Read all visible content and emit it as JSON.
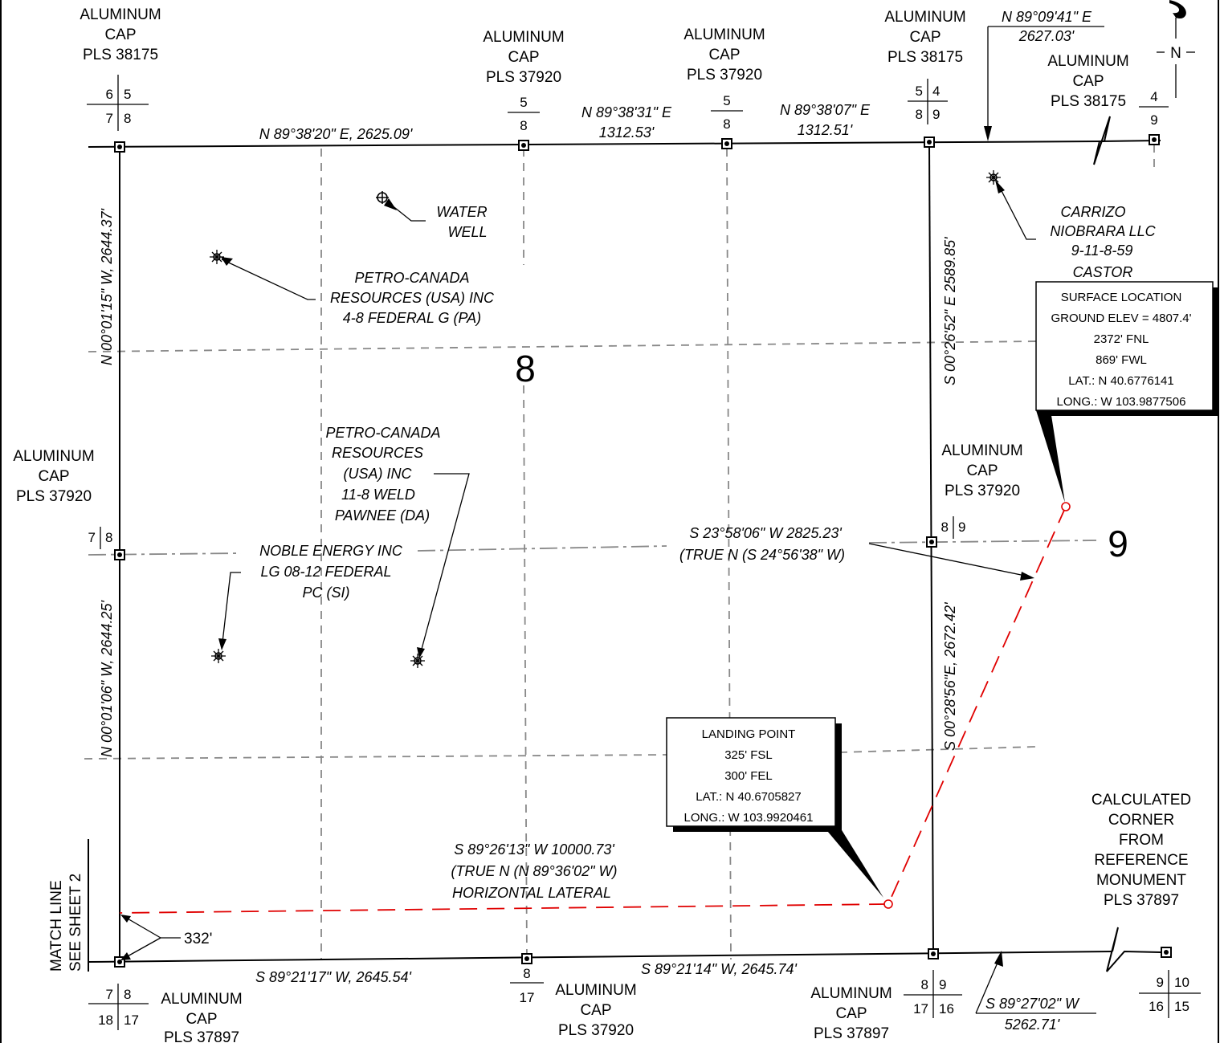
{
  "monuments": {
    "nw_cap": [
      "ALUMINUM",
      "CAP",
      "PLS 38175"
    ],
    "n_quarter_cap": [
      "ALUMINUM",
      "CAP",
      "PLS 37920"
    ],
    "n_mid_cap": [
      "ALUMINUM",
      "CAP",
      "PLS 37920"
    ],
    "ne_cap": [
      "ALUMINUM",
      "CAP",
      "PLS 38175"
    ],
    "far_ne_cap": [
      "ALUMINUM",
      "CAP",
      "PLS 38175"
    ],
    "w_quarter_cap": [
      "ALUMINUM",
      "CAP",
      "PLS 37920"
    ],
    "e_quarter_cap": [
      "ALUMINUM",
      "CAP",
      "PLS 37920"
    ],
    "sw_cap": [
      "ALUMINUM",
      "CAP",
      "PLS 37897"
    ],
    "s_quarter_cap": [
      "ALUMINUM",
      "CAP",
      "PLS 37920"
    ],
    "se_cap": [
      "ALUMINUM",
      "CAP",
      "PLS 37897"
    ],
    "calculated_corner": [
      "CALCULATED",
      "CORNER",
      "FROM",
      "REFERENCE",
      "MONUMENT",
      "PLS 37897"
    ]
  },
  "section_corners": {
    "nw": [
      "6",
      "5",
      "7",
      "8"
    ],
    "n_quarter": [
      "5",
      "8"
    ],
    "n_mid": [
      "5",
      "8"
    ],
    "ne": [
      "5",
      "4",
      "8",
      "9"
    ],
    "far_ne": [
      "4",
      "9"
    ],
    "w": [
      "7",
      "8"
    ],
    "e": [
      "8",
      "9"
    ],
    "sw": [
      "7",
      "8",
      "18",
      "17"
    ],
    "s_quarter": [
      "8",
      "17"
    ],
    "se": [
      "8",
      "9",
      "17",
      "16"
    ],
    "far_se": [
      "9",
      "10",
      "16",
      "15"
    ]
  },
  "bearings": {
    "north_line": "N 89°38'20\" E,  2625.09'",
    "north_mid_1": [
      "N 89°38'31\" E",
      "1312.53'"
    ],
    "north_mid_2": [
      "N 89°38'07\" E",
      "1312.51'"
    ],
    "north_east": [
      "N 89°09'41\" E",
      "2627.03'"
    ],
    "west_upper": "N 00°01'15\" W,  2644.37'",
    "west_lower": "N 00°01'06\" W,  2644.25'",
    "east_upper": "S 00°26'52\" E  2589.85'",
    "east_lower": "S 00°28'56\"E,  2672.42'",
    "south_line_1": "S 89°21'17\" W,  2645.54'",
    "south_line_2": "S 89°21'14\" W,  2645.74'",
    "south_east": [
      "S 89°27'02\" W",
      "5262.71'"
    ]
  },
  "wells": {
    "water_well": [
      "WATER",
      "WELL"
    ],
    "petro_canada_1": [
      "PETRO-CANADA",
      "RESOURCES (USA) INC",
      "4-8 FEDERAL G  (PA)"
    ],
    "petro_canada_2": [
      "PETRO-CANADA",
      "RESOURCES",
      "(USA) INC",
      "11-8 WELD",
      "PAWNEE  (DA)"
    ],
    "noble": [
      "NOBLE ENERGY INC",
      "LG 08-12 FEDERAL",
      "PC (SI)"
    ],
    "carrizo": [
      "CARRIZO",
      "NIOBRARA LLC",
      "9-11-8-59",
      "CASTOR"
    ]
  },
  "surface_location": [
    "SURFACE LOCATION",
    "GROUND ELEV = 4807.4'",
    "2372' FNL",
    "869' FWL",
    "LAT.: N 40.6776141",
    "LONG.: W 103.9877506"
  ],
  "landing_point": [
    "LANDING POINT",
    "325' FSL",
    "300' FEL",
    "LAT.: N 40.6705827",
    "LONG.: W 103.9920461"
  ],
  "lateral": {
    "diagonal": [
      "S 23°58'06\" W  2825.23'",
      "(TRUE N (S 24°56'38\" W)"
    ],
    "horizontal": [
      "S 89°26'13\" W  10000.73'",
      "(TRUE N (N 89°36'02\" W)",
      "HORIZONTAL LATERAL"
    ]
  },
  "section_numbers": {
    "s8": "8",
    "s9": "9"
  },
  "offset": "332'",
  "match_line": [
    "MATCH LINE",
    "SEE SHEET 2"
  ],
  "north_arrow": "N"
}
